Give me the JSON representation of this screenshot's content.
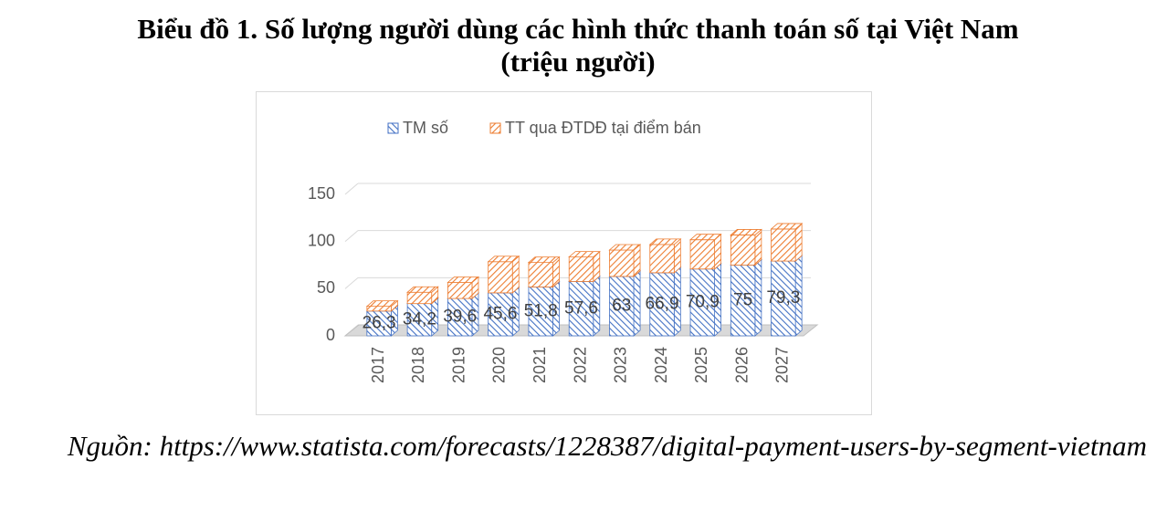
{
  "chart_data": {
    "type": "stacked-bar-3d",
    "title": "Biểu đồ 1. Số lượng người dùng các hình thức thanh toán số tại Việt Nam",
    "subtitle": "(triệu người)",
    "source": "Nguồn: https://www.statista.com/forecasts/1228387/digital-payment-users-by-segment-vietnam",
    "categories": [
      "2017",
      "2018",
      "2019",
      "2020",
      "2021",
      "2022",
      "2023",
      "2024",
      "2025",
      "2026",
      "2027"
    ],
    "series": [
      {
        "name": "TM số",
        "color": "#4472c4",
        "values": [
          26.3,
          34.2,
          39.6,
          45.6,
          51.8,
          57.6,
          63,
          66.9,
          70.9,
          75,
          79.3
        ],
        "value_labels": [
          "26,3",
          "34,2",
          "39,6",
          "45,6",
          "51,8",
          "57,6",
          "63",
          "66,9",
          "70,9",
          "75",
          "79,3"
        ]
      },
      {
        "name": "TT qua ĐTDĐ tại điểm bán",
        "color": "#ed7d31",
        "values": [
          5,
          12,
          17,
          33,
          26,
          26,
          28,
          30,
          31,
          32,
          34
        ]
      }
    ],
    "ylim": [
      0,
      150
    ],
    "yticks": [
      0,
      50,
      100,
      150
    ],
    "grid": true,
    "legend": "top"
  }
}
